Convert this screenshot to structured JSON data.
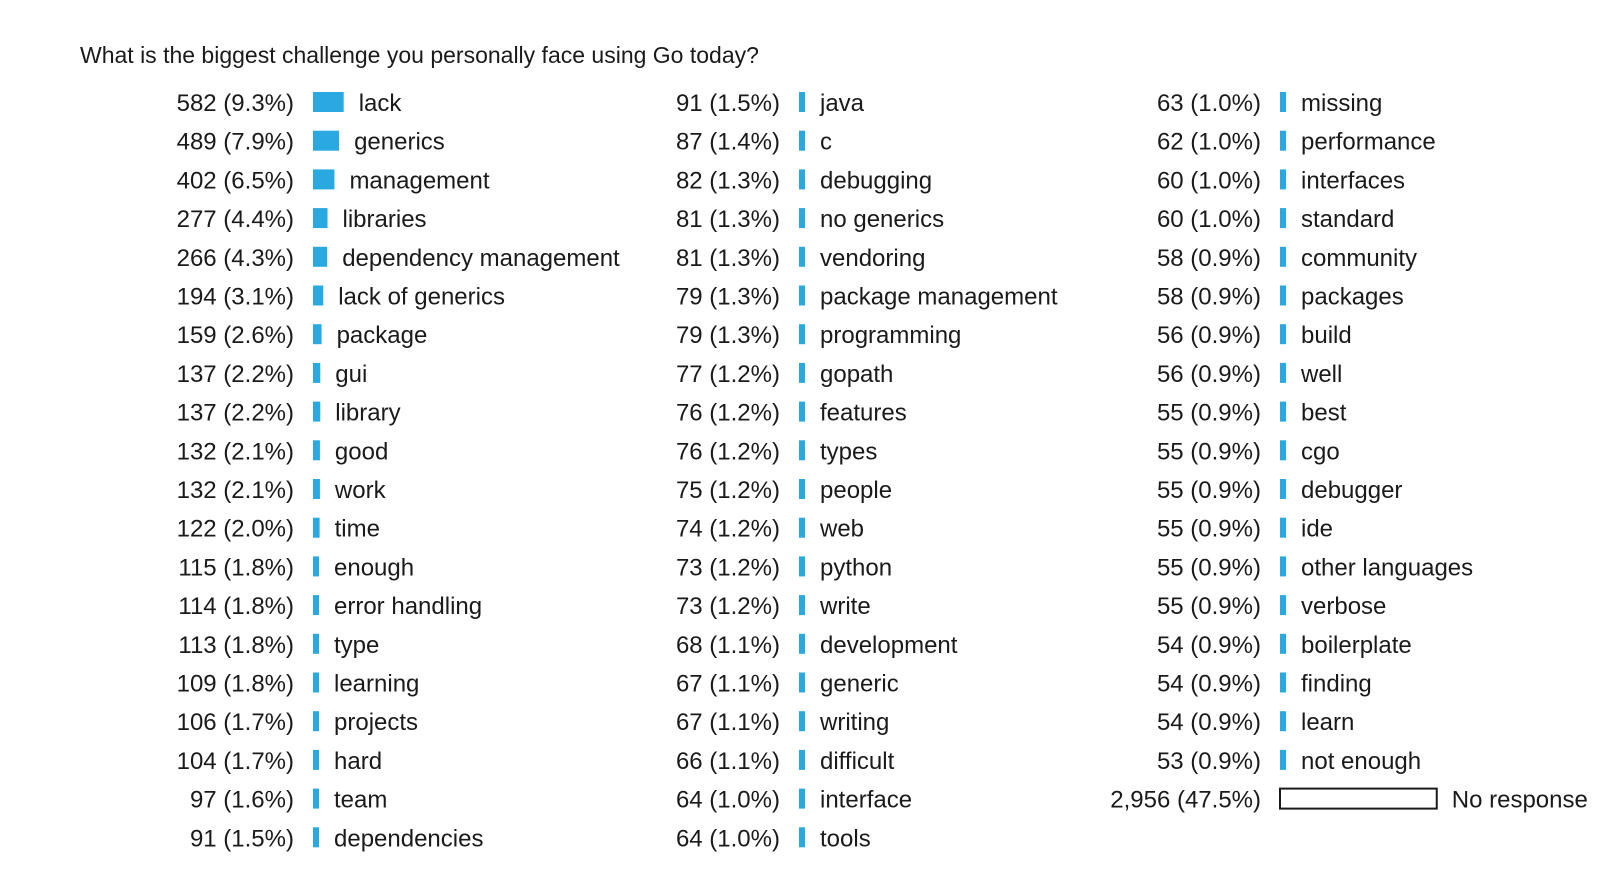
{
  "chart_data": {
    "type": "bar",
    "orientation": "horizontal",
    "title": "What is the biggest challenge you personally face using Go today?",
    "bar_color": "#29a9e0",
    "no_response_fill": "#ffffff",
    "columns": [
      [
        {
          "count": "582",
          "pct": "9.3%",
          "label": "lack",
          "value": 9.3
        },
        {
          "count": "489",
          "pct": "7.9%",
          "label": "generics",
          "value": 7.9
        },
        {
          "count": "402",
          "pct": "6.5%",
          "label": "management",
          "value": 6.5
        },
        {
          "count": "277",
          "pct": "4.4%",
          "label": "libraries",
          "value": 4.4
        },
        {
          "count": "266",
          "pct": "4.3%",
          "label": "dependency management",
          "value": 4.3
        },
        {
          "count": "194",
          "pct": "3.1%",
          "label": "lack of generics",
          "value": 3.1
        },
        {
          "count": "159",
          "pct": "2.6%",
          "label": "package",
          "value": 2.6
        },
        {
          "count": "137",
          "pct": "2.2%",
          "label": "gui",
          "value": 2.2
        },
        {
          "count": "137",
          "pct": "2.2%",
          "label": "library",
          "value": 2.2
        },
        {
          "count": "132",
          "pct": "2.1%",
          "label": "good",
          "value": 2.1
        },
        {
          "count": "132",
          "pct": "2.1%",
          "label": "work",
          "value": 2.1
        },
        {
          "count": "122",
          "pct": "2.0%",
          "label": "time",
          "value": 2.0
        },
        {
          "count": "115",
          "pct": "1.8%",
          "label": "enough",
          "value": 1.8
        },
        {
          "count": "114",
          "pct": "1.8%",
          "label": "error handling",
          "value": 1.8
        },
        {
          "count": "113",
          "pct": "1.8%",
          "label": "type",
          "value": 1.8
        },
        {
          "count": "109",
          "pct": "1.8%",
          "label": "learning",
          "value": 1.8
        },
        {
          "count": "106",
          "pct": "1.7%",
          "label": "projects",
          "value": 1.7
        },
        {
          "count": "104",
          "pct": "1.7%",
          "label": "hard",
          "value": 1.7
        },
        {
          "count": "97",
          "pct": "1.6%",
          "label": "team",
          "value": 1.6
        },
        {
          "count": "91",
          "pct": "1.5%",
          "label": "dependencies",
          "value": 1.5
        }
      ],
      [
        {
          "count": "91",
          "pct": "1.5%",
          "label": "java",
          "value": 1.5
        },
        {
          "count": "87",
          "pct": "1.4%",
          "label": "c",
          "value": 1.4
        },
        {
          "count": "82",
          "pct": "1.3%",
          "label": "debugging",
          "value": 1.3
        },
        {
          "count": "81",
          "pct": "1.3%",
          "label": "no generics",
          "value": 1.3
        },
        {
          "count": "81",
          "pct": "1.3%",
          "label": "vendoring",
          "value": 1.3
        },
        {
          "count": "79",
          "pct": "1.3%",
          "label": "package management",
          "value": 1.3
        },
        {
          "count": "79",
          "pct": "1.3%",
          "label": "programming",
          "value": 1.3
        },
        {
          "count": "77",
          "pct": "1.2%",
          "label": "gopath",
          "value": 1.2
        },
        {
          "count": "76",
          "pct": "1.2%",
          "label": "features",
          "value": 1.2
        },
        {
          "count": "76",
          "pct": "1.2%",
          "label": "types",
          "value": 1.2
        },
        {
          "count": "75",
          "pct": "1.2%",
          "label": "people",
          "value": 1.2
        },
        {
          "count": "74",
          "pct": "1.2%",
          "label": "web",
          "value": 1.2
        },
        {
          "count": "73",
          "pct": "1.2%",
          "label": "python",
          "value": 1.2
        },
        {
          "count": "73",
          "pct": "1.2%",
          "label": "write",
          "value": 1.2
        },
        {
          "count": "68",
          "pct": "1.1%",
          "label": "development",
          "value": 1.1
        },
        {
          "count": "67",
          "pct": "1.1%",
          "label": "generic",
          "value": 1.1
        },
        {
          "count": "67",
          "pct": "1.1%",
          "label": "writing",
          "value": 1.1
        },
        {
          "count": "66",
          "pct": "1.1%",
          "label": "difficult",
          "value": 1.1
        },
        {
          "count": "64",
          "pct": "1.0%",
          "label": "interface",
          "value": 1.0
        },
        {
          "count": "64",
          "pct": "1.0%",
          "label": "tools",
          "value": 1.0
        }
      ],
      [
        {
          "count": "63",
          "pct": "1.0%",
          "label": "missing",
          "value": 1.0
        },
        {
          "count": "62",
          "pct": "1.0%",
          "label": "performance",
          "value": 1.0
        },
        {
          "count": "60",
          "pct": "1.0%",
          "label": "interfaces",
          "value": 1.0
        },
        {
          "count": "60",
          "pct": "1.0%",
          "label": "standard",
          "value": 1.0
        },
        {
          "count": "58",
          "pct": "0.9%",
          "label": "community",
          "value": 0.9
        },
        {
          "count": "58",
          "pct": "0.9%",
          "label": "packages",
          "value": 0.9
        },
        {
          "count": "56",
          "pct": "0.9%",
          "label": "build",
          "value": 0.9
        },
        {
          "count": "56",
          "pct": "0.9%",
          "label": "well",
          "value": 0.9
        },
        {
          "count": "55",
          "pct": "0.9%",
          "label": "best",
          "value": 0.9
        },
        {
          "count": "55",
          "pct": "0.9%",
          "label": "cgo",
          "value": 0.9
        },
        {
          "count": "55",
          "pct": "0.9%",
          "label": "debugger",
          "value": 0.9
        },
        {
          "count": "55",
          "pct": "0.9%",
          "label": "ide",
          "value": 0.9
        },
        {
          "count": "55",
          "pct": "0.9%",
          "label": "other languages",
          "value": 0.9
        },
        {
          "count": "55",
          "pct": "0.9%",
          "label": "verbose",
          "value": 0.9
        },
        {
          "count": "54",
          "pct": "0.9%",
          "label": "boilerplate",
          "value": 0.9
        },
        {
          "count": "54",
          "pct": "0.9%",
          "label": "finding",
          "value": 0.9
        },
        {
          "count": "54",
          "pct": "0.9%",
          "label": "learn",
          "value": 0.9
        },
        {
          "count": "53",
          "pct": "0.9%",
          "label": "not enough",
          "value": 0.9
        },
        {
          "count": "2,956",
          "pct": "47.5%",
          "label": "No response",
          "value": 47.5,
          "no_response": true
        }
      ]
    ]
  }
}
